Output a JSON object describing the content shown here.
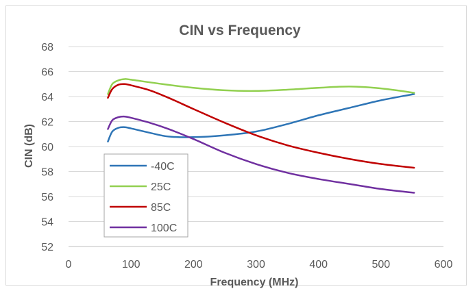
{
  "chart_data": {
    "type": "line",
    "title": "CIN vs Frequency",
    "xlabel": "Frequency (MHz)",
    "ylabel": "CIN (dB)",
    "xlim": [
      0,
      600
    ],
    "ylim": [
      52,
      68
    ],
    "xticks": [
      0,
      100,
      200,
      300,
      400,
      500,
      600
    ],
    "yticks": [
      52,
      54,
      56,
      58,
      60,
      62,
      64,
      66,
      68
    ],
    "grid": "horizontal",
    "legend_position": "bottom-left",
    "series": [
      {
        "name": "-40C",
        "color": "#2E75B6",
        "points": [
          [
            63,
            60.4
          ],
          [
            70,
            61.2
          ],
          [
            80,
            61.5
          ],
          [
            90,
            61.55
          ],
          [
            100,
            61.45
          ],
          [
            130,
            61.1
          ],
          [
            160,
            60.8
          ],
          [
            200,
            60.75
          ],
          [
            250,
            60.9
          ],
          [
            300,
            61.2
          ],
          [
            350,
            61.8
          ],
          [
            400,
            62.5
          ],
          [
            450,
            63.1
          ],
          [
            500,
            63.7
          ],
          [
            553,
            64.2
          ]
        ]
      },
      {
        "name": "25C",
        "color": "#92D050",
        "points": [
          [
            63,
            64.2
          ],
          [
            70,
            65.0
          ],
          [
            80,
            65.3
          ],
          [
            90,
            65.4
          ],
          [
            100,
            65.35
          ],
          [
            150,
            65.0
          ],
          [
            200,
            64.7
          ],
          [
            250,
            64.5
          ],
          [
            300,
            64.45
          ],
          [
            350,
            64.55
          ],
          [
            400,
            64.7
          ],
          [
            450,
            64.8
          ],
          [
            500,
            64.65
          ],
          [
            553,
            64.3
          ]
        ]
      },
      {
        "name": "85C",
        "color": "#C00000",
        "points": [
          [
            63,
            63.9
          ],
          [
            70,
            64.6
          ],
          [
            80,
            64.95
          ],
          [
            90,
            65.0
          ],
          [
            100,
            64.9
          ],
          [
            130,
            64.5
          ],
          [
            160,
            63.9
          ],
          [
            200,
            63.0
          ],
          [
            250,
            61.9
          ],
          [
            300,
            60.9
          ],
          [
            350,
            60.1
          ],
          [
            400,
            59.5
          ],
          [
            450,
            59.0
          ],
          [
            500,
            58.6
          ],
          [
            553,
            58.3
          ]
        ]
      },
      {
        "name": "100C",
        "color": "#7030A0",
        "points": [
          [
            63,
            61.4
          ],
          [
            70,
            62.1
          ],
          [
            80,
            62.35
          ],
          [
            90,
            62.4
          ],
          [
            100,
            62.3
          ],
          [
            130,
            61.9
          ],
          [
            160,
            61.4
          ],
          [
            200,
            60.6
          ],
          [
            250,
            59.5
          ],
          [
            300,
            58.6
          ],
          [
            350,
            57.9
          ],
          [
            400,
            57.4
          ],
          [
            450,
            57.0
          ],
          [
            500,
            56.6
          ],
          [
            553,
            56.3
          ]
        ]
      }
    ]
  }
}
